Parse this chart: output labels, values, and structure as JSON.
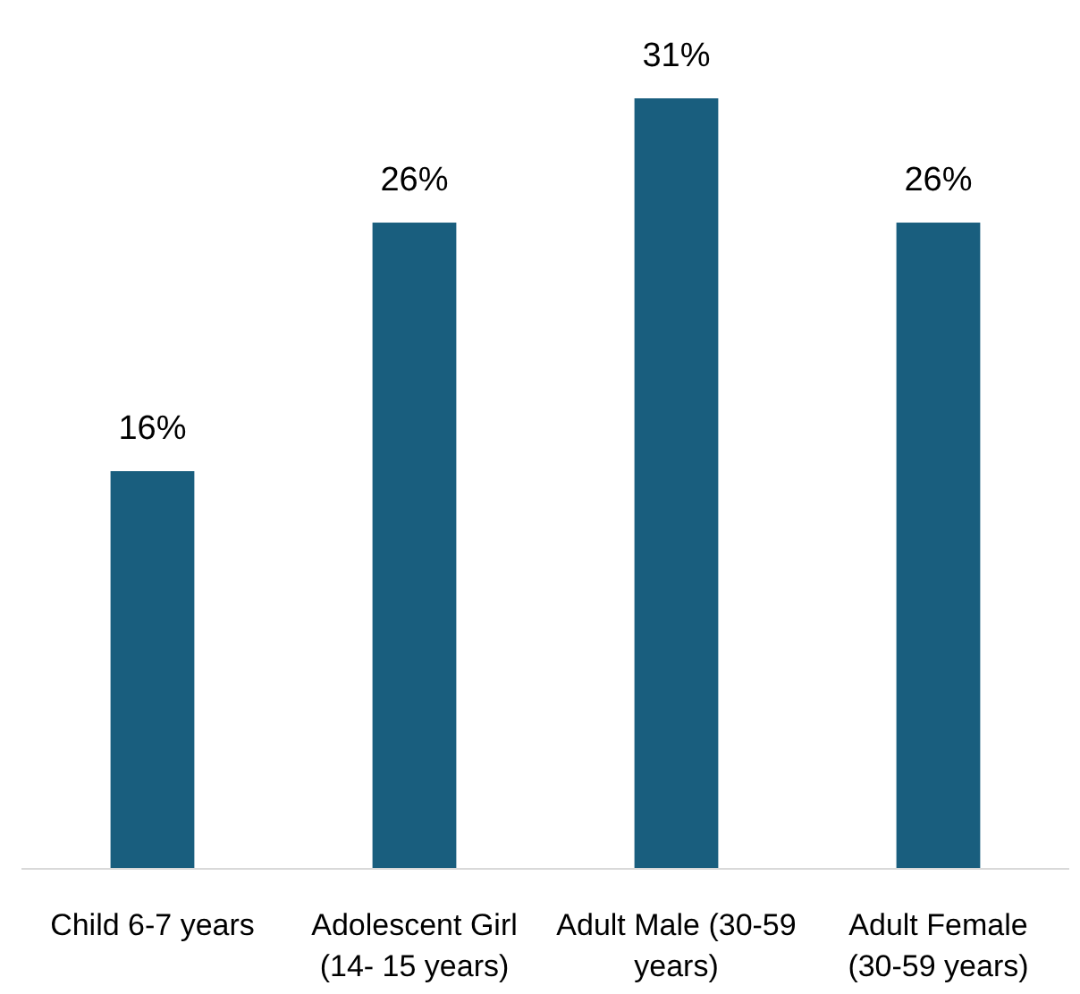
{
  "chart_data": {
    "type": "bar",
    "categories": [
      "Child 6-7 years",
      "Adolescent Girl (14- 15 years)",
      "Adult Male (30-59 years)",
      "Adult Female (30-59 years)"
    ],
    "values": [
      16,
      26,
      31,
      26
    ],
    "value_labels": [
      "16%",
      "26%",
      "31%",
      "26%"
    ],
    "color": "#195e7e"
  }
}
